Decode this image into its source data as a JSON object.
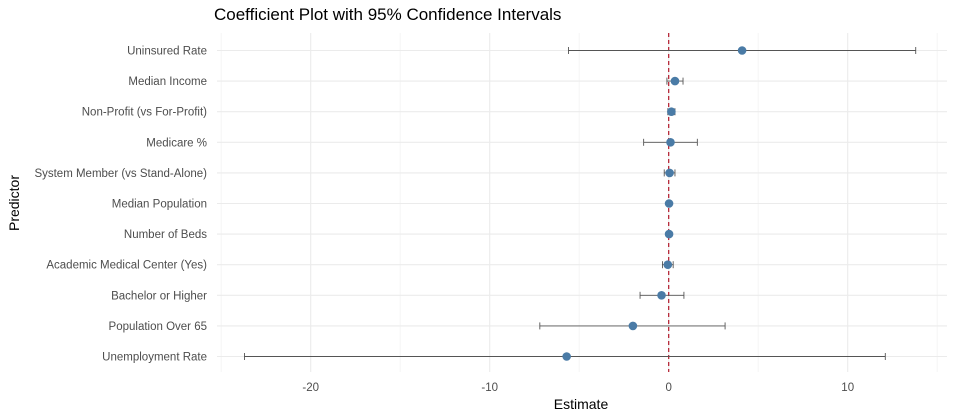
{
  "chart_data": {
    "type": "scatter",
    "subtype": "coefficient-plot-with-error-bars",
    "title": "Coefficient Plot with 95% Confidence Intervals",
    "xlabel": "Estimate",
    "ylabel": "Predictor",
    "xlim": [
      -25,
      15.5
    ],
    "xticks": [
      -20,
      -10,
      0,
      10
    ],
    "xtick_labels": [
      "-20",
      "-10",
      "0",
      "10"
    ],
    "grid": true,
    "reference_line": {
      "x": 0,
      "style": "dashed",
      "color": "#b2182b"
    },
    "colors": {
      "point": "#4a7ba6",
      "errorbar": "#555555",
      "grid": "#ebebeb"
    },
    "categories": [
      "Uninsured Rate",
      "Median Income",
      "Non-Profit (vs For-Profit)",
      "Medicare %",
      "System Member (vs Stand-Alone)",
      "Median Population",
      "Number of Beds",
      "Academic Medical Center (Yes)",
      "Bachelor or Higher",
      "Population Over 65",
      "Unemployment Rate"
    ],
    "estimates": [
      4.1,
      0.35,
      0.15,
      0.1,
      0.05,
      0.02,
      0.02,
      -0.05,
      -0.4,
      -2.0,
      -5.7
    ],
    "lower": [
      -5.6,
      -0.1,
      -0.05,
      -1.4,
      -0.25,
      -0.05,
      -0.05,
      -0.35,
      -1.6,
      -7.2,
      -23.7
    ],
    "upper": [
      13.8,
      0.8,
      0.35,
      1.6,
      0.35,
      0.09,
      0.09,
      0.25,
      0.85,
      3.15,
      12.1
    ]
  }
}
